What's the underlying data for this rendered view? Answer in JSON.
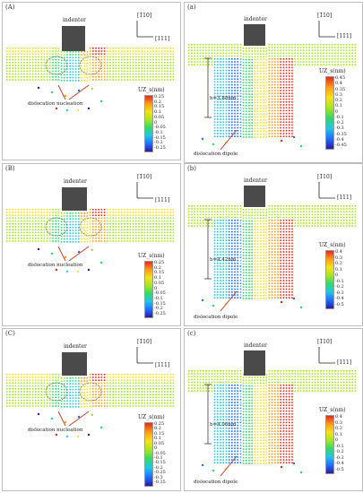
{
  "colors": {
    "border": "#bdbdbd",
    "indenter": "#4a4a4a",
    "arrow": "#c0392b",
    "colormap": [
      "#2b1b9e",
      "#1f6fff",
      "#21c6e6",
      "#32d86b",
      "#a7e61e",
      "#f5e11a",
      "#ff9d12",
      "#e8281e"
    ]
  },
  "axes": {
    "up": "[1̄10]",
    "right": "[111]"
  },
  "panels": [
    {
      "label": "(A)",
      "indenter": "indenter",
      "annotation": "dislocation nucleation",
      "cb_title": "UZ_s(nm)",
      "ticks": [
        "0.25",
        "0.2",
        "0.15",
        "0.1",
        "0.05",
        "0",
        "-0.05",
        "-0.1",
        "-0.15",
        "-0.2",
        "-0.25"
      ]
    },
    {
      "label": "(a)",
      "indenter": "indenter",
      "annotation": "dislocation dipole",
      "h": "h=3.88nm",
      "cb_title": "UZ_s(nm)",
      "ticks": [
        "0.45",
        "0.4",
        "0.35",
        "0.3",
        "0.2",
        "0.1",
        "0",
        "-0.1",
        "-0.2",
        "-0.3",
        "-0.35",
        "-0.4",
        "-0.45"
      ]
    },
    {
      "label": "(B)",
      "indenter": "indenter",
      "annotation": "dislocation nucleation",
      "cb_title": "UZ_s(nm)",
      "ticks": [
        "0.25",
        "0.2",
        "0.15",
        "0.1",
        "0.05",
        "0",
        "-0.05",
        "-0.1",
        "-0.15",
        "-0.2",
        "-0.25"
      ]
    },
    {
      "label": "(b)",
      "indenter": "indenter",
      "annotation": "dislocation dipole",
      "h": "h=4.42nm",
      "cb_title": "UZ_s(nm)",
      "ticks": [
        "0.4",
        "0.3",
        "0.2",
        "0.1",
        "0",
        "-0.1",
        "-0.2",
        "-0.3",
        "-0.4",
        "-0.5"
      ]
    },
    {
      "label": "(C)",
      "indenter": "indenter",
      "annotation": "dislocation nucleation",
      "cb_title": "UZ_s(nm)",
      "ticks": [
        "0.25",
        "0.2",
        "0.15",
        "0.1",
        "0.05",
        "0",
        "-0.05",
        "-0.1",
        "-0.15",
        "-0.2",
        "-0.25",
        "-0.3",
        "-0.35"
      ]
    },
    {
      "label": "(c)",
      "indenter": "indenter",
      "annotation": "dislocation dipole",
      "h": "h=4.06nm",
      "cb_title": "UZ_s(nm)",
      "ticks": [
        "0.4",
        "0.3",
        "0.2",
        "0.1",
        "0",
        "-0.1",
        "-0.2",
        "-0.3",
        "-0.4",
        "-0.5"
      ]
    }
  ]
}
